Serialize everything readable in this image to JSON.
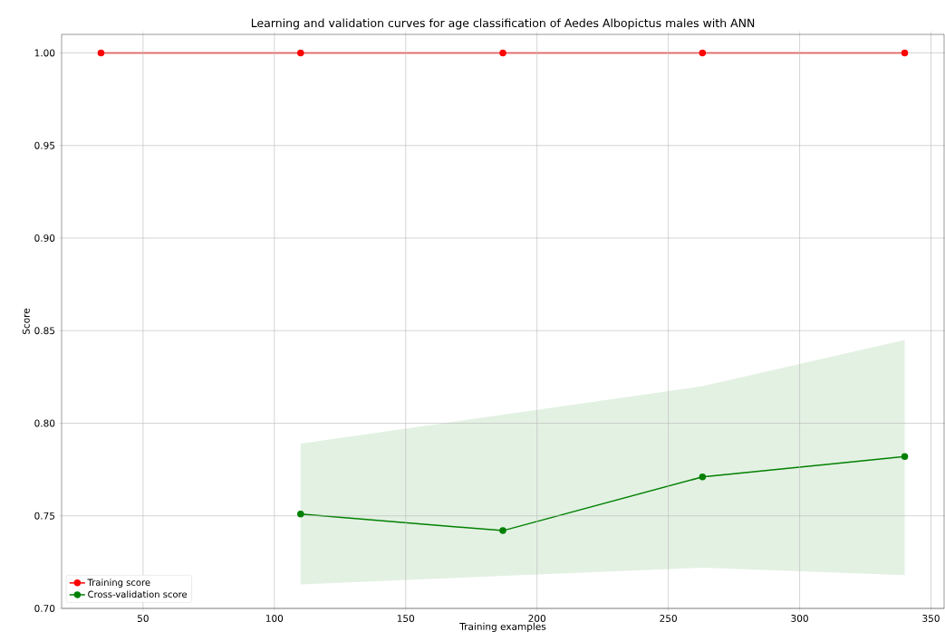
{
  "chart_data": {
    "type": "line",
    "title": "Learning and validation curves for age classification of Aedes Albopictus males with ANN",
    "xlabel": "Training examples",
    "ylabel": "Score",
    "x": [
      34,
      110,
      187,
      263,
      340
    ],
    "series": [
      {
        "name": "Training score",
        "color": "#ff0000",
        "values": [
          1.0,
          1.0,
          1.0,
          1.0,
          1.0
        ]
      },
      {
        "name": "Cross-validation score",
        "color": "#008000",
        "values": [
          null,
          0.751,
          0.742,
          0.771,
          0.782
        ],
        "lower": [
          null,
          0.713,
          null,
          0.722,
          0.718
        ],
        "upper": [
          null,
          0.789,
          null,
          0.82,
          0.845
        ]
      }
    ],
    "xlim": [
      19,
      355
    ],
    "ylim": [
      0.7,
      1.01
    ],
    "xticks": [
      50,
      100,
      150,
      200,
      250,
      300,
      350
    ],
    "yticks": [
      {
        "value": 0.7,
        "label": "0.70"
      },
      0.75,
      {
        "value": 0.8,
        "label": "0.80"
      },
      0.85,
      {
        "value": 0.9,
        "label": "0.90"
      },
      0.95,
      {
        "value": 1.0,
        "label": "1.00"
      }
    ],
    "grid": true,
    "legend": "bottom left",
    "marker": "circle",
    "line_style": "solid"
  }
}
